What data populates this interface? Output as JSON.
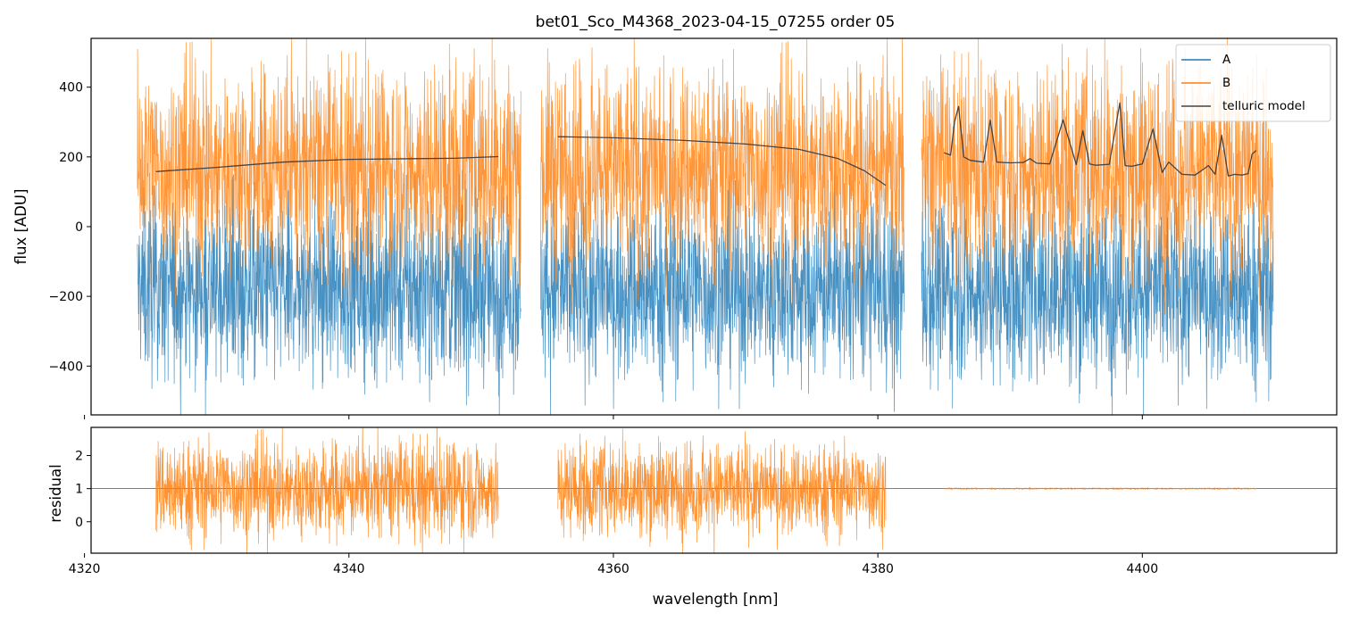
{
  "chart_data": [
    {
      "type": "line",
      "panel": "top",
      "title": "bet01_Sco_M4368_2023-04-15_07255  order 05",
      "xlabel": "",
      "ylabel": "flux [ADU]",
      "xlim": [
        4320.5,
        4414.7
      ],
      "ylim": [
        -540,
        540
      ],
      "yticks": [
        400,
        200,
        0,
        -200,
        -400
      ],
      "ytick_labels": [
        "400",
        "200",
        "0",
        "−200",
        "−400"
      ],
      "xticks": [
        4320,
        4340,
        4360,
        4380,
        4400
      ],
      "xtick_labels": [
        "",
        "",
        "",
        "",
        ""
      ],
      "legend": {
        "position": "top-right",
        "entries": [
          "A",
          "B",
          "telluric model"
        ]
      },
      "series": [
        {
          "name": "A",
          "color": "#1f77b4",
          "style": "noise",
          "segments": [
            [
              4324.0,
              4353.0
            ],
            [
              4354.5,
              4382.0
            ],
            [
              4383.3,
              4409.9
            ]
          ],
          "center": -180,
          "spread": 130,
          "min": -540,
          "max": 150
        },
        {
          "name": "B",
          "color": "#ff7f0e",
          "style": "noise",
          "segments": [
            [
              4324.0,
              4353.0
            ],
            [
              4354.5,
              4382.0
            ],
            [
              4383.3,
              4409.9
            ]
          ],
          "center": 170,
          "spread": 150,
          "min": -250,
          "max": 540
        },
        {
          "name": "telluric model",
          "color": "#444444",
          "style": "line",
          "segments": [
            {
              "x": [
                4325.4,
                4330,
                4335,
                4340,
                4345,
                4348,
                4351.3
              ],
              "y": [
                158,
                170,
                185,
                193,
                195,
                196,
                201
              ]
            },
            {
              "x": [
                4355.8,
                4360,
                4365,
                4370,
                4374,
                4377,
                4379,
                4380.6
              ],
              "y": [
                258,
                255,
                248,
                237,
                222,
                195,
                160,
                118
              ]
            },
            {
              "x": [
                4385.0,
                4385.5,
                4385.8,
                4386.1,
                4386.5,
                4387.0,
                4388.0,
                4388.5,
                4389.0,
                4390.0,
                4391.0,
                4391.5,
                4392.0,
                4393.0,
                4394.0,
                4395.0,
                4395.5,
                4396.0,
                4396.5,
                4397.5,
                4398.3,
                4398.7,
                4399.2,
                4400.0,
                4400.8,
                4401.5,
                4402.0,
                4403.0,
                4404.0,
                4405.0,
                4405.5,
                4406.0,
                4406.5,
                4407.0,
                4407.5,
                4408.0,
                4408.3,
                4408.6
              ],
              "y": [
                212,
                205,
                300,
                345,
                200,
                190,
                185,
                305,
                185,
                183,
                184,
                195,
                182,
                180,
                306,
                178,
                275,
                180,
                176,
                179,
                355,
                175,
                173,
                180,
                280,
                155,
                185,
                150,
                148,
                175,
                150,
                262,
                145,
                150,
                148,
                152,
                208,
                218
              ]
            }
          ]
        }
      ]
    },
    {
      "type": "line",
      "panel": "bottom",
      "title": "",
      "xlabel": "wavelength [nm]",
      "ylabel": "residual",
      "xlim": [
        4320.5,
        4414.7
      ],
      "ylim": [
        -0.95,
        2.85
      ],
      "yticks": [
        2,
        1,
        0
      ],
      "ytick_labels": [
        "2",
        "1",
        "0"
      ],
      "xticks": [
        4320,
        4340,
        4360,
        4380,
        4400
      ],
      "xtick_labels": [
        "4320",
        "4340",
        "4360",
        "4380",
        "4400"
      ],
      "reference_line": 1,
      "series": [
        {
          "name": "residual",
          "color": "#ff7f0e",
          "style": "noise",
          "segments": [
            {
              "range": [
                4325.4,
                4351.3
              ],
              "center": 1.0,
              "spread": 0.75
            },
            {
              "range": [
                4355.8,
                4380.6
              ],
              "center": 1.0,
              "spread": 0.7
            },
            {
              "range": [
                4385.0,
                4408.6
              ],
              "center": 1.0,
              "spread": 0.01
            }
          ]
        }
      ]
    }
  ]
}
